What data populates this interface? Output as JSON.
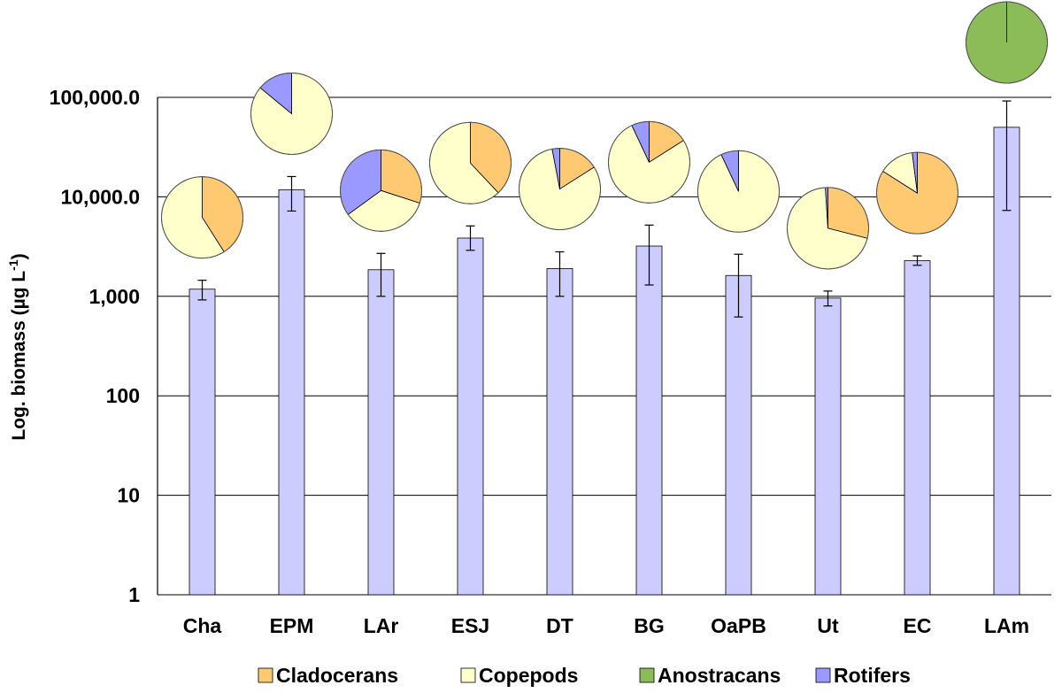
{
  "chart_data": {
    "type": "bar",
    "subtype": "bar-with-error-bars-and-composition-pies",
    "scale": "log",
    "ylabel": "Log. biomass (µg L",
    "ylabel_superscript": "-1",
    "ylabel_close": ")",
    "ylim": [
      1,
      100000
    ],
    "yticks": [
      {
        "value": 1,
        "label": "1"
      },
      {
        "value": 10,
        "label": "10"
      },
      {
        "value": 100,
        "label": "100"
      },
      {
        "value": 1000,
        "label": "1,000"
      },
      {
        "value": 10000,
        "label": "10,000.0"
      },
      {
        "value": 100000,
        "label": "100,000.0"
      }
    ],
    "categories": [
      "Cha",
      "EPM",
      "LAr",
      "ESJ",
      "DT",
      "BG",
      "OaPB",
      "Ut",
      "EC",
      "LAm"
    ],
    "values": [
      1180,
      11800,
      1850,
      3850,
      1900,
      3200,
      1620,
      960,
      2280,
      50000
    ],
    "error_low": [
      920,
      7200,
      1000,
      2900,
      1000,
      1300,
      620,
      800,
      2050,
      7300
    ],
    "error_high": [
      1450,
      16000,
      2700,
      5100,
      2800,
      5200,
      2650,
      1130,
      2550,
      92000
    ],
    "bar_color": "#ccccff",
    "composition_series": [
      "Cladocerans",
      "Copepods",
      "Anostracans",
      "Rotifers"
    ],
    "composition_colors": [
      "#ffc972",
      "#ffffcc",
      "#8cbc57",
      "#9999ff"
    ],
    "composition_percent": [
      [
        41,
        59,
        0,
        0
      ],
      [
        0,
        86,
        0,
        14
      ],
      [
        30,
        35,
        0,
        35
      ],
      [
        38,
        62,
        0,
        0
      ],
      [
        16,
        81,
        0,
        3
      ],
      [
        16,
        77,
        0,
        7
      ],
      [
        0,
        93,
        0,
        7
      ],
      [
        29,
        70,
        0,
        1
      ],
      [
        84,
        14,
        0,
        2
      ],
      [
        0,
        0,
        100,
        0
      ]
    ],
    "legend": [
      "Cladocerans",
      "Copepods",
      "Anostracans",
      "Rotifers"
    ],
    "legend_position": "bottom",
    "grid": true
  }
}
